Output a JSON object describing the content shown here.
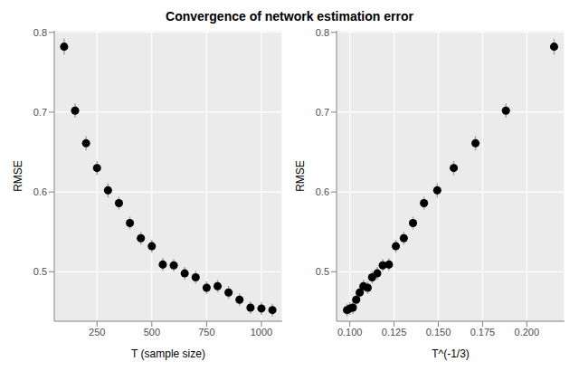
{
  "title": "Convergence of network estimation error",
  "chart_data": [
    {
      "type": "scatter",
      "x_label": "T (sample size)",
      "y_label": "RMSE",
      "color": "#000000",
      "marker": "circle",
      "grid": true,
      "x": [
        100,
        150,
        200,
        250,
        300,
        350,
        400,
        450,
        500,
        550,
        600,
        650,
        700,
        750,
        800,
        850,
        900,
        950,
        1000,
        1050
      ],
      "values": [
        0.782,
        0.702,
        0.661,
        0.63,
        0.602,
        0.586,
        0.561,
        0.542,
        0.532,
        0.509,
        0.508,
        0.498,
        0.493,
        0.48,
        0.482,
        0.474,
        0.465,
        0.455,
        0.454,
        0.452
      ],
      "errors": [
        0.01,
        0.009,
        0.009,
        0.009,
        0.009,
        0.008,
        0.008,
        0.008,
        0.008,
        0.008,
        0.008,
        0.008,
        0.008,
        0.008,
        0.008,
        0.008,
        0.008,
        0.008,
        0.008,
        0.008
      ],
      "xlim": [
        55,
        1095
      ],
      "ylim": [
        0.438,
        0.802
      ],
      "xticks": [
        250,
        500,
        750,
        1000
      ],
      "yticks": [
        0.5,
        0.6,
        0.7,
        0.8
      ]
    },
    {
      "type": "scatter",
      "x_label": "T^(-1/3)",
      "y_label": "RMSE",
      "color": "#000000",
      "marker": "circle",
      "grid": true,
      "x": [
        0.2154,
        0.1882,
        0.171,
        0.1587,
        0.1494,
        0.1419,
        0.1357,
        0.1305,
        0.126,
        0.1221,
        0.1186,
        0.1155,
        0.1126,
        0.1101,
        0.1077,
        0.1056,
        0.1036,
        0.1017,
        0.1,
        0.0984
      ],
      "values": [
        0.782,
        0.702,
        0.661,
        0.63,
        0.602,
        0.586,
        0.561,
        0.542,
        0.532,
        0.509,
        0.508,
        0.498,
        0.493,
        0.48,
        0.482,
        0.474,
        0.465,
        0.455,
        0.454,
        0.452
      ],
      "errors": [
        0.01,
        0.009,
        0.009,
        0.009,
        0.009,
        0.008,
        0.008,
        0.008,
        0.008,
        0.008,
        0.008,
        0.008,
        0.008,
        0.008,
        0.008,
        0.008,
        0.008,
        0.008,
        0.008,
        0.008
      ],
      "xlim": [
        0.0925,
        0.2213
      ],
      "ylim": [
        0.438,
        0.802
      ],
      "xticks": [
        {
          "value": 0.1,
          "label": "0.100"
        },
        {
          "value": 0.125,
          "label": "0.125"
        },
        {
          "value": 0.15,
          "label": "0.150"
        },
        {
          "value": 0.175,
          "label": "0.175"
        },
        {
          "value": 0.2,
          "label": "0.200"
        }
      ],
      "yticks": [
        0.5,
        0.6,
        0.7,
        0.8
      ]
    }
  ]
}
